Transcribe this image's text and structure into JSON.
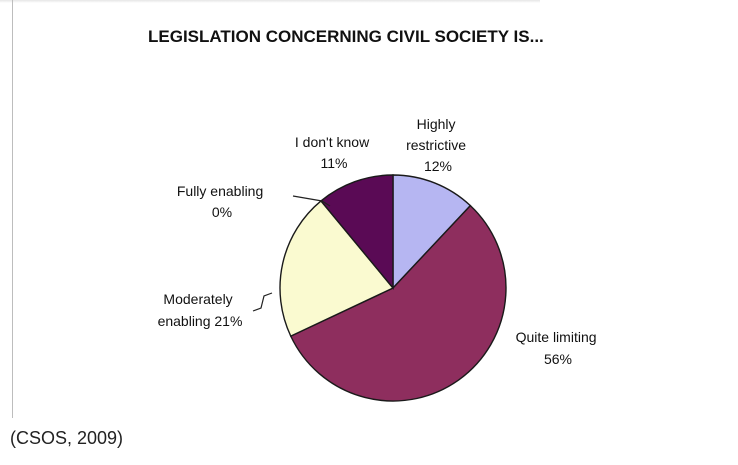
{
  "chart_data": {
    "type": "pie",
    "title": "LEGISLATION CONCERNING CIVIL SOCIETY IS...",
    "slices": [
      {
        "label": "Highly restrictive",
        "value": 12,
        "value_label": "12%",
        "color": "#b6b6f2"
      },
      {
        "label": "Quite limiting",
        "value": 56,
        "value_label": "56%",
        "color": "#8e2e5e"
      },
      {
        "label": "Moderately enabling",
        "value": 21,
        "value_label": "21%",
        "color": "#fafad0"
      },
      {
        "label": "Fully enabling",
        "value": 0,
        "value_label": "0%",
        "color": "#c6e8ee"
      },
      {
        "label": "I don't know",
        "value": 11,
        "value_label": "11%",
        "color": "#5a0a55"
      }
    ]
  },
  "source": "(CSOS, 2009)"
}
